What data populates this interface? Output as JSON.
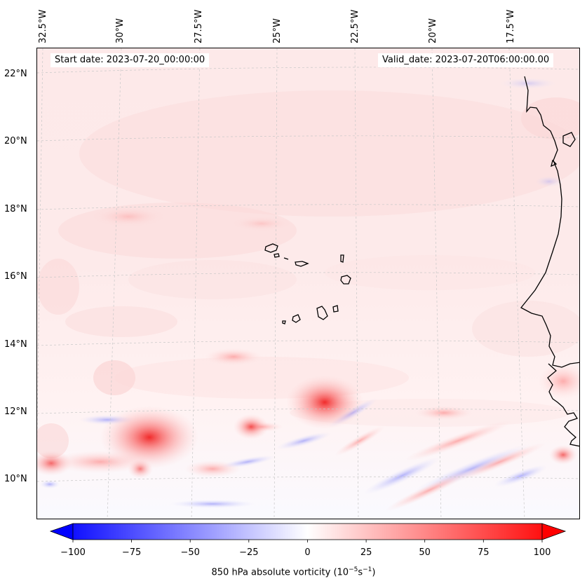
{
  "header": {
    "start_date": "Start date: 2023-07-20_00:00:00",
    "valid_date": "Valid_date: 2023-07-20T06:00:00.00"
  },
  "longitude_labels": [
    "32.5°W",
    "30°W",
    "27.5°W",
    "25°W",
    "22.5°W",
    "20°W",
    "17.5°W"
  ],
  "latitude_labels": [
    "22°N",
    "20°N",
    "18°N",
    "16°N",
    "14°N",
    "12°N",
    "10°N"
  ],
  "colorbar": {
    "label_text": "850 hPa absolute vorticity (10",
    "label_sup1": "−5",
    "label_mid": "s",
    "label_sup2": "−1",
    "label_end": ")",
    "ticks": [
      "−100",
      "−75",
      "−50",
      "−25",
      "0",
      "25",
      "50",
      "75",
      "100"
    ],
    "min": -100,
    "max": 100,
    "colormap": "bwr",
    "extend": "both"
  },
  "colors": {
    "low": "#0000ff",
    "mid": "#ffffff",
    "high": "#ff0000",
    "coastline": "#000000",
    "gridline": "#cccccc"
  }
}
